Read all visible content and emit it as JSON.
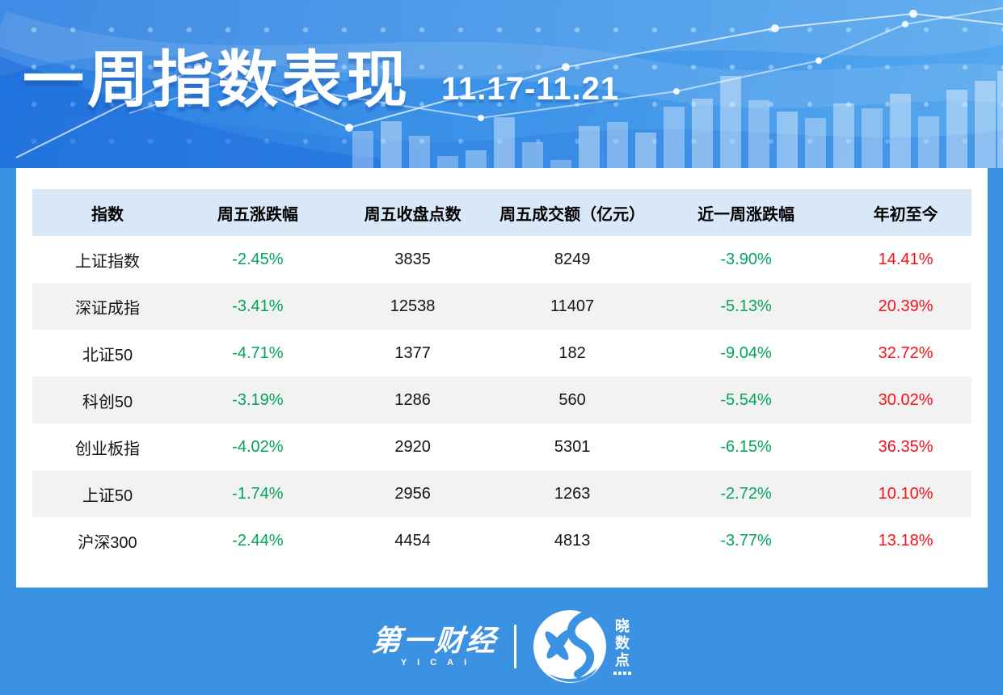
{
  "header": {
    "title": "一周指数表现",
    "date_range": "11.17-11.21"
  },
  "chart_data": {
    "type": "table",
    "title": "一周指数表现",
    "subtitle": "11.17-11.21",
    "columns": [
      "指数",
      "周五涨跌幅",
      "周五收盘点数",
      "周五成交额（亿元）",
      "近一周涨跌幅",
      "年初至今"
    ],
    "rows": [
      [
        "上证指数",
        "-2.45%",
        "3835",
        "8249",
        "-3.90%",
        "14.41%"
      ],
      [
        "深证成指",
        "-3.41%",
        "12538",
        "11407",
        "-5.13%",
        "20.39%"
      ],
      [
        "北证50",
        "-4.71%",
        "1377",
        "182",
        "-9.04%",
        "32.72%"
      ],
      [
        "科创50",
        "-3.19%",
        "1286",
        "560",
        "-5.54%",
        "30.02%"
      ],
      [
        "创业板指",
        "-4.02%",
        "2920",
        "5301",
        "-6.15%",
        "36.35%"
      ],
      [
        "上证50",
        "-1.74%",
        "2956",
        "1263",
        "-2.72%",
        "10.10%"
      ],
      [
        "沪深300",
        "-2.44%",
        "4454",
        "4813",
        "-3.77%",
        "13.18%"
      ]
    ],
    "value_color_rule": "负值为绿色，正值为红色",
    "legend_position": "none",
    "grid": false
  },
  "footer": {
    "yicai_name": "第一财经",
    "yicai_sub": "YICAI",
    "xsd_chars": [
      "晓",
      "数",
      "点"
    ]
  },
  "colors": {
    "down_green": "#00a55b",
    "up_red": "#f7121a",
    "accent_blue": "#3b91e2",
    "header_band": "#d9e8f6",
    "alt_row": "#f2f2f2"
  }
}
